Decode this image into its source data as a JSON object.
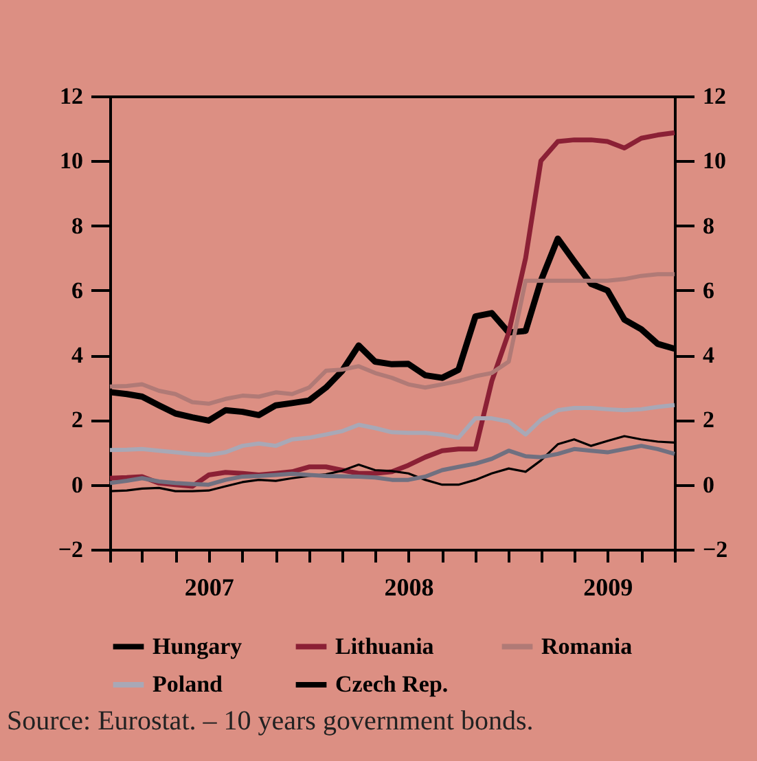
{
  "chart_data": {
    "type": "line",
    "x": [
      "2007-01",
      "2007-02",
      "2007-03",
      "2007-04",
      "2007-05",
      "2007-06",
      "2007-07",
      "2007-08",
      "2007-09",
      "2007-10",
      "2007-11",
      "2007-12",
      "2008-01",
      "2008-02",
      "2008-03",
      "2008-04",
      "2008-05",
      "2008-06",
      "2008-07",
      "2008-08",
      "2008-09",
      "2008-10",
      "2008-11",
      "2008-12",
      "2009-01",
      "2009-02",
      "2009-03",
      "2009-04",
      "2009-05",
      "2009-06",
      "2009-07",
      "2009-08",
      "2009-09",
      "2009-10",
      "2009-11"
    ],
    "series": [
      {
        "name": "Hungary",
        "color": "#000000",
        "values": [
          2.86,
          2.8,
          2.72,
          2.45,
          2.2,
          2.08,
          1.98,
          2.3,
          2.25,
          2.15,
          2.45,
          2.52,
          2.6,
          3.0,
          3.5,
          4.3,
          3.8,
          3.72,
          3.73,
          3.38,
          3.3,
          3.55,
          5.2,
          5.3,
          4.7,
          4.75,
          6.3,
          7.6,
          6.9,
          6.2,
          6.0,
          5.1,
          4.8,
          4.35,
          4.2
        ]
      },
      {
        "name": "Lithuania",
        "color": "#8b2035",
        "values": [
          0.2,
          0.22,
          0.25,
          0.05,
          0.0,
          -0.05,
          0.3,
          0.38,
          0.35,
          0.3,
          0.35,
          0.4,
          0.55,
          0.55,
          0.45,
          0.35,
          0.35,
          0.4,
          0.6,
          0.85,
          1.05,
          1.1,
          1.1,
          3.2,
          4.7,
          7.0,
          10.0,
          10.6,
          10.65,
          10.65,
          10.6,
          10.4,
          10.7,
          10.8,
          10.87
        ]
      },
      {
        "name": "Romania",
        "color": "#b07a76",
        "values": [
          3.03,
          3.05,
          3.1,
          2.9,
          2.8,
          2.55,
          2.5,
          2.65,
          2.75,
          2.72,
          2.85,
          2.8,
          3.0,
          3.52,
          3.55,
          3.66,
          3.45,
          3.3,
          3.1,
          3.0,
          3.1,
          3.2,
          3.35,
          3.45,
          3.8,
          6.3,
          6.3,
          6.3,
          6.3,
          6.3,
          6.3,
          6.35,
          6.45,
          6.5,
          6.5
        ]
      },
      {
        "name": "Poland",
        "color": "#a8a8b6",
        "values": [
          1.07,
          1.08,
          1.1,
          1.05,
          1.0,
          0.95,
          0.92,
          1.0,
          1.2,
          1.27,
          1.2,
          1.4,
          1.45,
          1.55,
          1.65,
          1.85,
          1.75,
          1.62,
          1.6,
          1.6,
          1.55,
          1.45,
          2.05,
          2.05,
          1.95,
          1.55,
          2.0,
          2.3,
          2.37,
          2.37,
          2.33,
          2.3,
          2.33,
          2.4,
          2.46
        ]
      },
      {
        "name": "Czech Rep.",
        "color": "#000000",
        "values": [
          -0.2,
          -0.18,
          -0.12,
          -0.1,
          -0.2,
          -0.2,
          -0.18,
          -0.05,
          0.08,
          0.15,
          0.12,
          0.2,
          0.27,
          0.32,
          0.43,
          0.62,
          0.45,
          0.42,
          0.35,
          0.15,
          0.0,
          0.0,
          0.15,
          0.35,
          0.5,
          0.4,
          0.75,
          1.25,
          1.4,
          1.2,
          1.35,
          1.5,
          1.4,
          1.33,
          1.3
        ]
      },
      {
        "color": "#707080",
        "values": [
          0.05,
          0.12,
          0.2,
          0.1,
          0.05,
          0.02,
          0.0,
          0.15,
          0.25,
          0.27,
          0.3,
          0.34,
          0.3,
          0.27,
          0.26,
          0.25,
          0.22,
          0.15,
          0.15,
          0.25,
          0.45,
          0.55,
          0.65,
          0.8,
          1.05,
          0.88,
          0.85,
          0.95,
          1.1,
          1.05,
          1.0,
          1.1,
          1.2,
          1.1,
          0.95
        ]
      }
    ],
    "xlim": [
      "2007-01-01",
      "2009-11-01"
    ],
    "xticks": [
      {
        "value": "2007-01-01",
        "label": null
      },
      {
        "value": "2007-03-01",
        "label": null
      },
      {
        "value": "2007-05-01",
        "label": null
      },
      {
        "value": "2007-07-01",
        "label": "2007"
      },
      {
        "value": "2007-09-01",
        "label": null
      },
      {
        "value": "2007-11-01",
        "label": null
      },
      {
        "value": "2008-01-01",
        "label": null
      },
      {
        "value": "2008-03-01",
        "label": null
      },
      {
        "value": "2008-05-01",
        "label": null
      },
      {
        "value": "2008-07-01",
        "label": "2008"
      },
      {
        "value": "2008-09-01",
        "label": null
      },
      {
        "value": "2008-11-01",
        "label": null
      },
      {
        "value": "2009-01-01",
        "label": null
      },
      {
        "value": "2009-03-01",
        "label": null
      },
      {
        "value": "2009-05-01",
        "label": null
      },
      {
        "value": "2009-07-01",
        "label": "2009"
      },
      {
        "value": "2009-09-01",
        "label": null
      },
      {
        "value": "2009-11-01",
        "label": null
      }
    ],
    "ylim": [
      -2,
      12
    ],
    "yticks": [
      {
        "value": -2,
        "label": "−2"
      },
      0,
      2,
      4,
      6,
      8,
      10,
      12
    ],
    "y2lim": [
      -2,
      12
    ],
    "y2ticks": [
      {
        "value": -2,
        "label": "−2"
      },
      0,
      2,
      4,
      6,
      8,
      10,
      12
    ],
    "grid": false,
    "legend": "bottom",
    "line_style": "solid",
    "marker": "none",
    "annotations": [
      "Source: Eurostat. – 10 years government bonds."
    ]
  }
}
